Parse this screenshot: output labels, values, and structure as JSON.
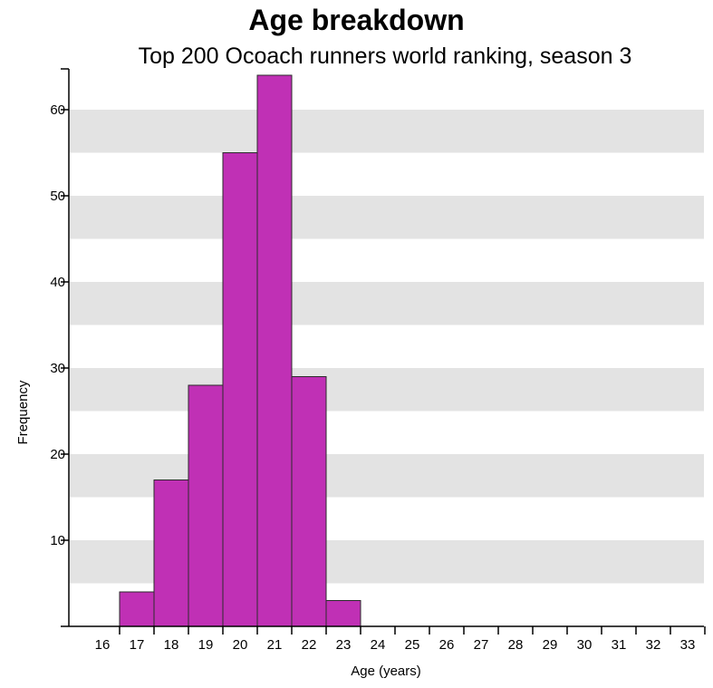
{
  "chart_data": {
    "type": "bar",
    "title": "Age breakdown",
    "subtitle": "Top 200 Ocoach runners world ranking, season 3",
    "xlabel": "Age (years)",
    "ylabel": "Frequency",
    "categories": [
      17,
      18,
      19,
      20,
      21,
      22,
      23
    ],
    "values": [
      4,
      17,
      28,
      55,
      64,
      29,
      3
    ],
    "x_ticks": [
      16,
      17,
      18,
      19,
      20,
      21,
      22,
      23,
      24,
      25,
      26,
      27,
      28,
      29,
      30,
      31,
      32,
      33
    ],
    "y_ticks": [
      10,
      20,
      30,
      40,
      50,
      60
    ],
    "xlim": [
      15.05,
      33.5
    ],
    "ylim": [
      0,
      65
    ],
    "grid": "alternating horizontal bands",
    "colors": {
      "bar_fill": "#c030b5",
      "bar_stroke": "#2b2b2b",
      "band": "#e3e3e3"
    }
  }
}
